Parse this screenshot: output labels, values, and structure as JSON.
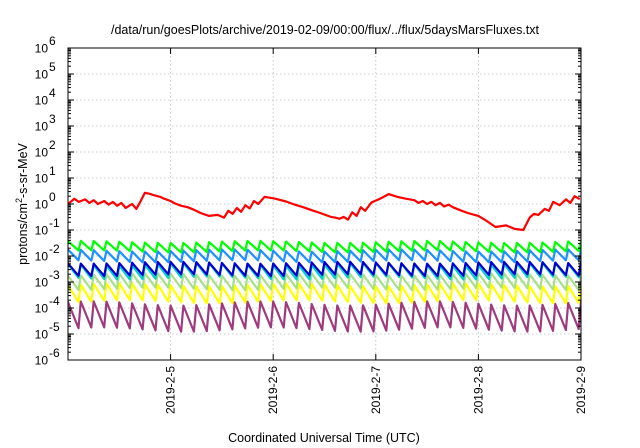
{
  "chart_data": {
    "type": "line",
    "title": "/data/run/goesPlots/archive/2019-02-09/00:00/flux/../flux/5daysMarsFluxes.txt",
    "xlabel": "Coordinated Universal Time (UTC)",
    "ylabel": "protons/cm2-s-sr-MeV",
    "ylabel_parts": {
      "pre": "protons/cm",
      "sup": "2",
      "post": "-s-sr-MeV"
    },
    "x_unit": "days",
    "xlim": [
      "2019-02-04 00:00",
      "2019-02-09 00:00"
    ],
    "ylim": [
      1e-06,
      1000000.0
    ],
    "y_scale": "log",
    "grid": true,
    "xticks": [
      {
        "value": "2019-02-05",
        "label": "2019-2-5"
      },
      {
        "value": "2019-02-06",
        "label": "2019-2-6"
      },
      {
        "value": "2019-02-07",
        "label": "2019-2-7"
      },
      {
        "value": "2019-02-08",
        "label": "2019-2-8"
      },
      {
        "value": "2019-02-09",
        "label": "2019-2-9"
      }
    ],
    "yticks": [
      {
        "value": 1e-06,
        "base": "10",
        "exp": "-6"
      },
      {
        "value": 1e-05,
        "base": "10",
        "exp": "-5"
      },
      {
        "value": 0.0001,
        "base": "10",
        "exp": "-4"
      },
      {
        "value": 0.001,
        "base": "10",
        "exp": "-3"
      },
      {
        "value": 0.01,
        "base": "10",
        "exp": "-2"
      },
      {
        "value": 0.1,
        "base": "10",
        "exp": "-1"
      },
      {
        "value": 1,
        "base": "10",
        "exp": "0"
      },
      {
        "value": 10.0,
        "base": "10",
        "exp": "1"
      },
      {
        "value": 100.0,
        "base": "10",
        "exp": "2"
      },
      {
        "value": 1000.0,
        "base": "10",
        "exp": "3"
      },
      {
        "value": 10000.0,
        "base": "10",
        "exp": "4"
      },
      {
        "value": 100000.0,
        "base": "10",
        "exp": "5"
      },
      {
        "value": 1000000.0,
        "base": "10",
        "exp": "6"
      }
    ],
    "series": [
      {
        "color": "#ff0000",
        "x": [
          "2019-02-04 00:00",
          "2019-02-04 01:30",
          "2019-02-04 02:30",
          "2019-02-04 04:00",
          "2019-02-04 05:00",
          "2019-02-04 06:00",
          "2019-02-04 07:00",
          "2019-02-04 08:30",
          "2019-02-04 09:30",
          "2019-02-04 10:30",
          "2019-02-04 11:30",
          "2019-02-04 12:30",
          "2019-02-04 13:30",
          "2019-02-04 15:00",
          "2019-02-04 16:00",
          "2019-02-04 17:00",
          "2019-02-04 18:00",
          "2019-02-04 19:00",
          "2019-02-04 20:00",
          "2019-02-04 21:30",
          "2019-02-04 22:30",
          "2019-02-05 00:00",
          "2019-02-05 01:00",
          "2019-02-05 02:30",
          "2019-02-05 04:00",
          "2019-02-05 05:30",
          "2019-02-05 07:00",
          "2019-02-05 09:00",
          "2019-02-05 11:00",
          "2019-02-05 12:30",
          "2019-02-05 13:30",
          "2019-02-05 14:30",
          "2019-02-05 15:30",
          "2019-02-05 16:30",
          "2019-02-05 17:30",
          "2019-02-05 18:30",
          "2019-02-05 19:30",
          "2019-02-05 20:30",
          "2019-02-05 22:00",
          "2019-02-06 00:30",
          "2019-02-06 03:00",
          "2019-02-06 05:00",
          "2019-02-06 07:00",
          "2019-02-06 09:00",
          "2019-02-06 11:00",
          "2019-02-06 13:30",
          "2019-02-06 14:30",
          "2019-02-06 15:30",
          "2019-02-06 16:30",
          "2019-02-06 17:30",
          "2019-02-06 18:30",
          "2019-02-06 19:30",
          "2019-02-06 20:30",
          "2019-02-06 21:30",
          "2019-02-06 23:00",
          "2019-02-07 01:00",
          "2019-02-07 03:00",
          "2019-02-07 05:00",
          "2019-02-07 07:00",
          "2019-02-07 09:00",
          "2019-02-07 10:00",
          "2019-02-07 11:00",
          "2019-02-07 12:00",
          "2019-02-07 13:00",
          "2019-02-07 14:00",
          "2019-02-07 15:00",
          "2019-02-07 16:00",
          "2019-02-07 17:00",
          "2019-02-07 18:00",
          "2019-02-07 19:30",
          "2019-02-07 21:30",
          "2019-02-08 00:00",
          "2019-02-08 02:00",
          "2019-02-08 04:00",
          "2019-02-08 06:30",
          "2019-02-08 08:30",
          "2019-02-08 10:30",
          "2019-02-08 12:00",
          "2019-02-08 13:00",
          "2019-02-08 14:00",
          "2019-02-08 15:30",
          "2019-02-08 16:30",
          "2019-02-08 17:30",
          "2019-02-08 19:00",
          "2019-02-08 20:30",
          "2019-02-08 21:30",
          "2019-02-08 22:30",
          "2019-02-08 23:30"
        ],
        "values": [
          1.0,
          1.6,
          1.2,
          1.5,
          1.1,
          1.4,
          1.0,
          1.3,
          0.95,
          1.2,
          0.85,
          1.1,
          0.7,
          1.0,
          0.65,
          1.3,
          2.7,
          2.5,
          2.2,
          1.9,
          1.6,
          1.3,
          1.05,
          0.85,
          0.75,
          0.6,
          0.45,
          0.35,
          0.38,
          0.3,
          0.55,
          0.42,
          0.7,
          0.5,
          0.9,
          0.68,
          1.3,
          1.0,
          1.9,
          1.6,
          1.25,
          0.95,
          0.75,
          0.58,
          0.45,
          0.32,
          0.3,
          0.27,
          0.32,
          0.25,
          0.48,
          0.35,
          0.75,
          0.55,
          1.15,
          1.6,
          2.4,
          1.9,
          1.6,
          1.4,
          1.1,
          1.3,
          1.0,
          1.2,
          0.9,
          1.1,
          0.8,
          0.95,
          0.75,
          0.6,
          0.45,
          0.35,
          0.22,
          0.13,
          0.15,
          0.11,
          0.1,
          0.3,
          0.42,
          0.38,
          0.65,
          0.55,
          1.2,
          0.9,
          1.5,
          1.1,
          2.0,
          1.6
        ]
      },
      {
        "color": "#00ff00",
        "low": 0.01,
        "high": 0.038,
        "amplitude_factor": 2.3
      },
      {
        "color": "#1e90ff",
        "low": 0.0045,
        "high": 0.018,
        "amplitude_factor": 2.6
      },
      {
        "color": "#00ced1",
        "low": 0.0009,
        "high": 0.0055,
        "amplitude_factor": 3.4
      },
      {
        "color": "#0000cd",
        "low": 0.0018,
        "high": 0.006,
        "amplitude_factor": 3.0
      },
      {
        "color": "#a8e08a",
        "low": 0.00045,
        "high": 0.0022,
        "amplitude_factor": 3.6
      },
      {
        "color": "#ffff00",
        "low": 0.00012,
        "high": 0.0009,
        "amplitude_factor": 4.5
      },
      {
        "color": "#9e3a7d",
        "low": 1.2e-05,
        "high": 0.00018,
        "amplitude_factor": 10.0
      }
    ],
    "sawtooth": {
      "cycles": 40,
      "start": "2019-02-04 00:00",
      "end": "2019-02-09 00:00"
    }
  }
}
